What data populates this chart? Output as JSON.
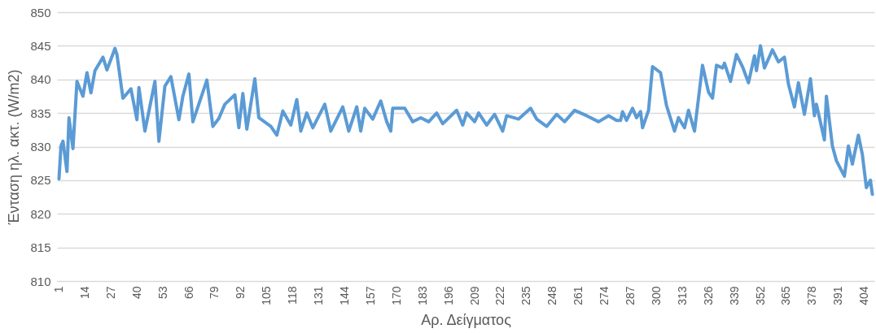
{
  "chart_data": {
    "type": "line",
    "xlabel": "Αρ. Δείγματος",
    "ylabel": "Ένταση ηλ. ακτ. (W/m2)",
    "xlim": [
      0,
      409
    ],
    "ylim": [
      810,
      850
    ],
    "yticks": [
      810,
      815,
      820,
      825,
      830,
      835,
      840,
      845,
      850
    ],
    "xticks": [
      1,
      14,
      27,
      40,
      53,
      66,
      79,
      92,
      105,
      118,
      131,
      144,
      157,
      170,
      183,
      196,
      209,
      222,
      235,
      248,
      261,
      274,
      287,
      300,
      313,
      326,
      339,
      352,
      365,
      378,
      391,
      404
    ],
    "grid": "y",
    "x": [
      1,
      2,
      3,
      5,
      6,
      8,
      10,
      13,
      15,
      17,
      19,
      23,
      25,
      29,
      30,
      33,
      37,
      40,
      41,
      44,
      49,
      51,
      54,
      57,
      61,
      63,
      66,
      68,
      73,
      75,
      78,
      81,
      84,
      89,
      91,
      93,
      95,
      99,
      101,
      107,
      110,
      113,
      117,
      120,
      122,
      125,
      128,
      134,
      137,
      143,
      146,
      150,
      152,
      154,
      158,
      162,
      165,
      167,
      168,
      174,
      178,
      182,
      186,
      190,
      193,
      200,
      203,
      205,
      209,
      211,
      215,
      219,
      223,
      225,
      231,
      237,
      240,
      245,
      250,
      254,
      259,
      265,
      271,
      276,
      280,
      282,
      283,
      285,
      288,
      290,
      292,
      293,
      296,
      298,
      302,
      305,
      309,
      311,
      314,
      316,
      319,
      323,
      326,
      328,
      330,
      333,
      334,
      337,
      340,
      343,
      346,
      349,
      350,
      352,
      354,
      358,
      361,
      364,
      366,
      369,
      371,
      374,
      377,
      379,
      380,
      384,
      385,
      388,
      390,
      394,
      396,
      398,
      401,
      403,
      405,
      407,
      408
    ],
    "series": [
      {
        "color": "#5b9bd5",
        "values": [
          825.2,
          830.1,
          830.8,
          826.3,
          834.3,
          829.7,
          839.7,
          837.5,
          841,
          838,
          841.3,
          843.3,
          841.4,
          844.6,
          843.7,
          837.2,
          838.6,
          834,
          838.8,
          832.3,
          839.7,
          830.8,
          839,
          840.4,
          834,
          837.5,
          840.8,
          833.7,
          838.1,
          839.9,
          833,
          834.2,
          836.3,
          837.7,
          832.8,
          837.9,
          832.6,
          840.1,
          834.3,
          833,
          831.7,
          835.3,
          833.2,
          837,
          832.3,
          835,
          832.8,
          836.3,
          832.3,
          835.9,
          832.3,
          835.9,
          832.3,
          835.7,
          834.1,
          836.8,
          833.7,
          832.3,
          835.7,
          835.7,
          833.7,
          834.3,
          833.7,
          835,
          833.4,
          835.4,
          833.2,
          835,
          833.7,
          835,
          833.2,
          834.8,
          832.3,
          834.6,
          834.1,
          835.7,
          834.1,
          833,
          834.8,
          833.7,
          835.4,
          834.6,
          833.7,
          834.6,
          833.9,
          833.9,
          835.2,
          833.9,
          835.7,
          834.3,
          835.2,
          832.8,
          835.4,
          841.9,
          841,
          836.1,
          832.3,
          834.3,
          832.8,
          835.4,
          832.3,
          842.1,
          838.1,
          837.2,
          842.1,
          841.7,
          842.4,
          839.7,
          843.7,
          841.9,
          839.5,
          843.5,
          841.3,
          845,
          841.7,
          844.4,
          842.6,
          843.3,
          839.3,
          835.9,
          839.5,
          834.8,
          840.1,
          834.6,
          836.3,
          831,
          837.5,
          830.1,
          827.9,
          825.6,
          830.1,
          827.4,
          831.7,
          828.8,
          823.9,
          825,
          822.9
        ]
      }
    ]
  }
}
